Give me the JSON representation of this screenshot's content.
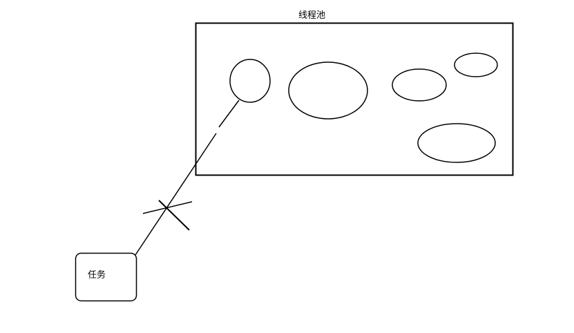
{
  "diagram": {
    "pool_label": "线程池",
    "task_label": "任务",
    "stroke_color": "#000000",
    "background_color": "#ffffff",
    "thread_count": 5,
    "connection": {
      "from": "任务",
      "to": "线程池",
      "blocked": true
    }
  }
}
